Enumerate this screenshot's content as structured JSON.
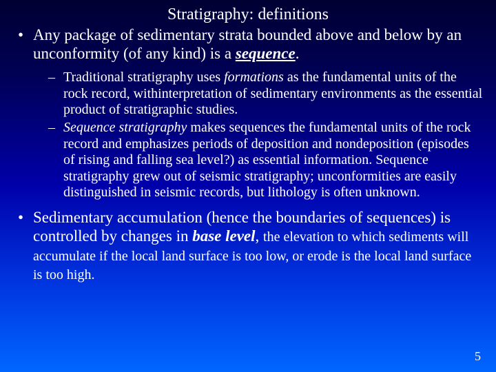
{
  "background": {
    "gradient_top": "#000033",
    "gradient_mid1": "#000055",
    "gradient_mid2": "#0000aa",
    "gradient_mid3": "#0033dd",
    "gradient_bottom": "#0066ff"
  },
  "text_color": "#ffffff",
  "font_family": "Times New Roman",
  "title": "Stratigraphy: definitions",
  "title_fontsize": 24,
  "bullets": {
    "b1_pre": "Any package of sedimentary strata bounded above and below by an unconformity (of any kind) is a ",
    "b1_em": "sequence",
    "b1_post": ".",
    "sub1_pre": "Traditional stratigraphy uses ",
    "sub1_em": "formations",
    "sub1_post": " as the fundamental units of the rock record, withinterpretation of sedimentary environments as the essential product of stratigraphic studies.",
    "sub2_em": "Sequence stratigraphy",
    "sub2_post": " makes sequences the fundamental units of the rock record and emphasizes periods of deposition and nondeposition (episodes of rising and falling sea level?) as essential information. Sequence stratigraphy grew out of seismic stratigraphy; unconformities are easily distinguished in seismic records, but lithology is often unknown.",
    "b2_pre": "Sedimentary accumulation (hence the boundaries of sequences) is controlled by changes in ",
    "b2_em": "base level",
    "b2_mid": ", ",
    "b2_sub": "the elevation to which sediments will accumulate if the local land surface is too low, or erode is the local land surface is too high."
  },
  "level1_fontsize": 23,
  "level2_fontsize": 20,
  "page_number": "5"
}
